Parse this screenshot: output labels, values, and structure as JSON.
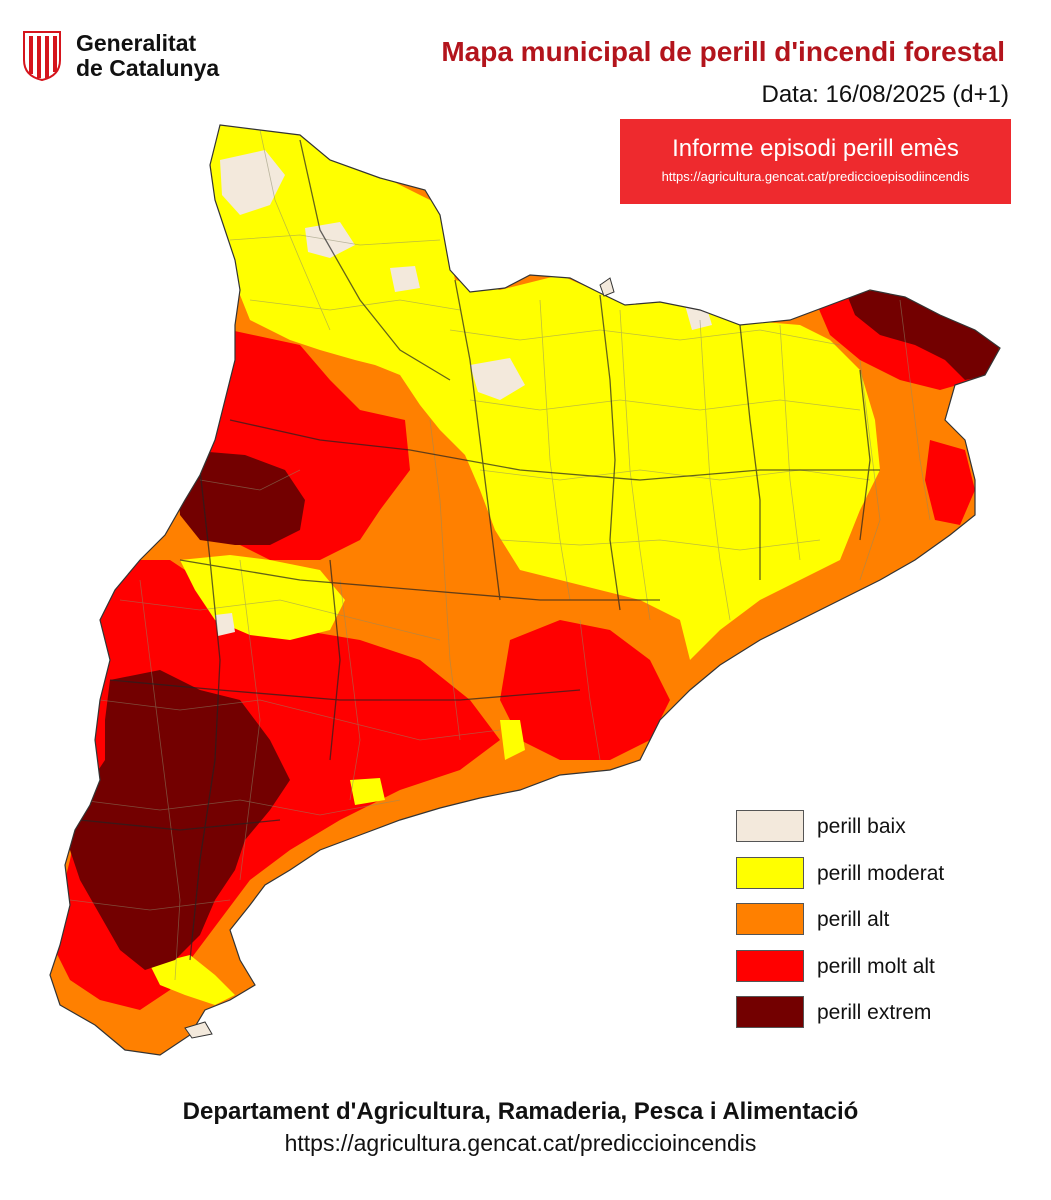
{
  "logo": {
    "line1": "Generalitat",
    "line2": "de Catalunya"
  },
  "title": "Mapa municipal de perill d'incendi forestal",
  "date": "Data: 16/08/2025 (d+1)",
  "alert": {
    "title": "Informe episodi perill emès",
    "url": "https://agricultura.gencat.cat/prediccioepisodiincendis",
    "color": "#ee2a2e"
  },
  "legend": [
    {
      "label": "perill baix",
      "color": "#f3e9dc"
    },
    {
      "label": "perill moderat",
      "color": "#ffff00"
    },
    {
      "label": "perill alt",
      "color": "#ff8000"
    },
    {
      "label": "perill molt alt",
      "color": "#ff0000"
    },
    {
      "label": "perill extrem",
      "color": "#730000"
    }
  ],
  "footer": {
    "department": "Departament d'Agricultura, Ramaderia, Pesca i Alimentació",
    "url": "https://agricultura.gencat.cat/prediccioincendis"
  }
}
